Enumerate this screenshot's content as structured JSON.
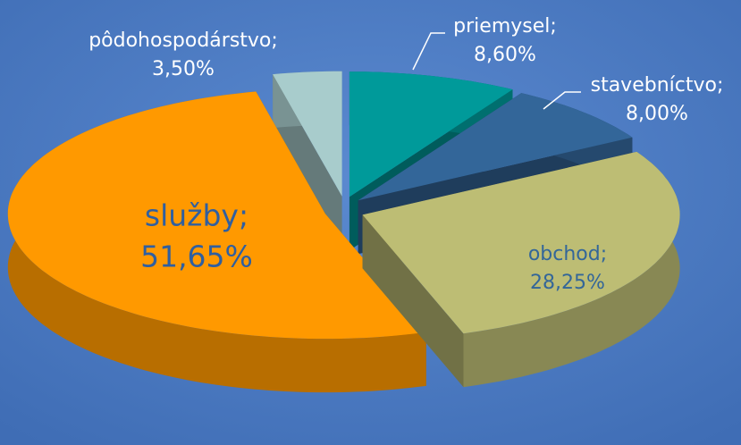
{
  "chart_data": {
    "type": "pie",
    "categories": [
      "priemysel;",
      "stavebníctvo;",
      "obchod;",
      "služby;",
      "pôdohospodárstvo;"
    ],
    "values": [
      8.6,
      8.0,
      28.25,
      51.65,
      3.5
    ],
    "value_labels": [
      "8,60%",
      "8,00%",
      "28,25%",
      "51,65%",
      "3,50%"
    ],
    "colors": [
      "#009a9a",
      "#336699",
      "#bdbd74",
      "#ff9900",
      "#a8cccc"
    ]
  }
}
